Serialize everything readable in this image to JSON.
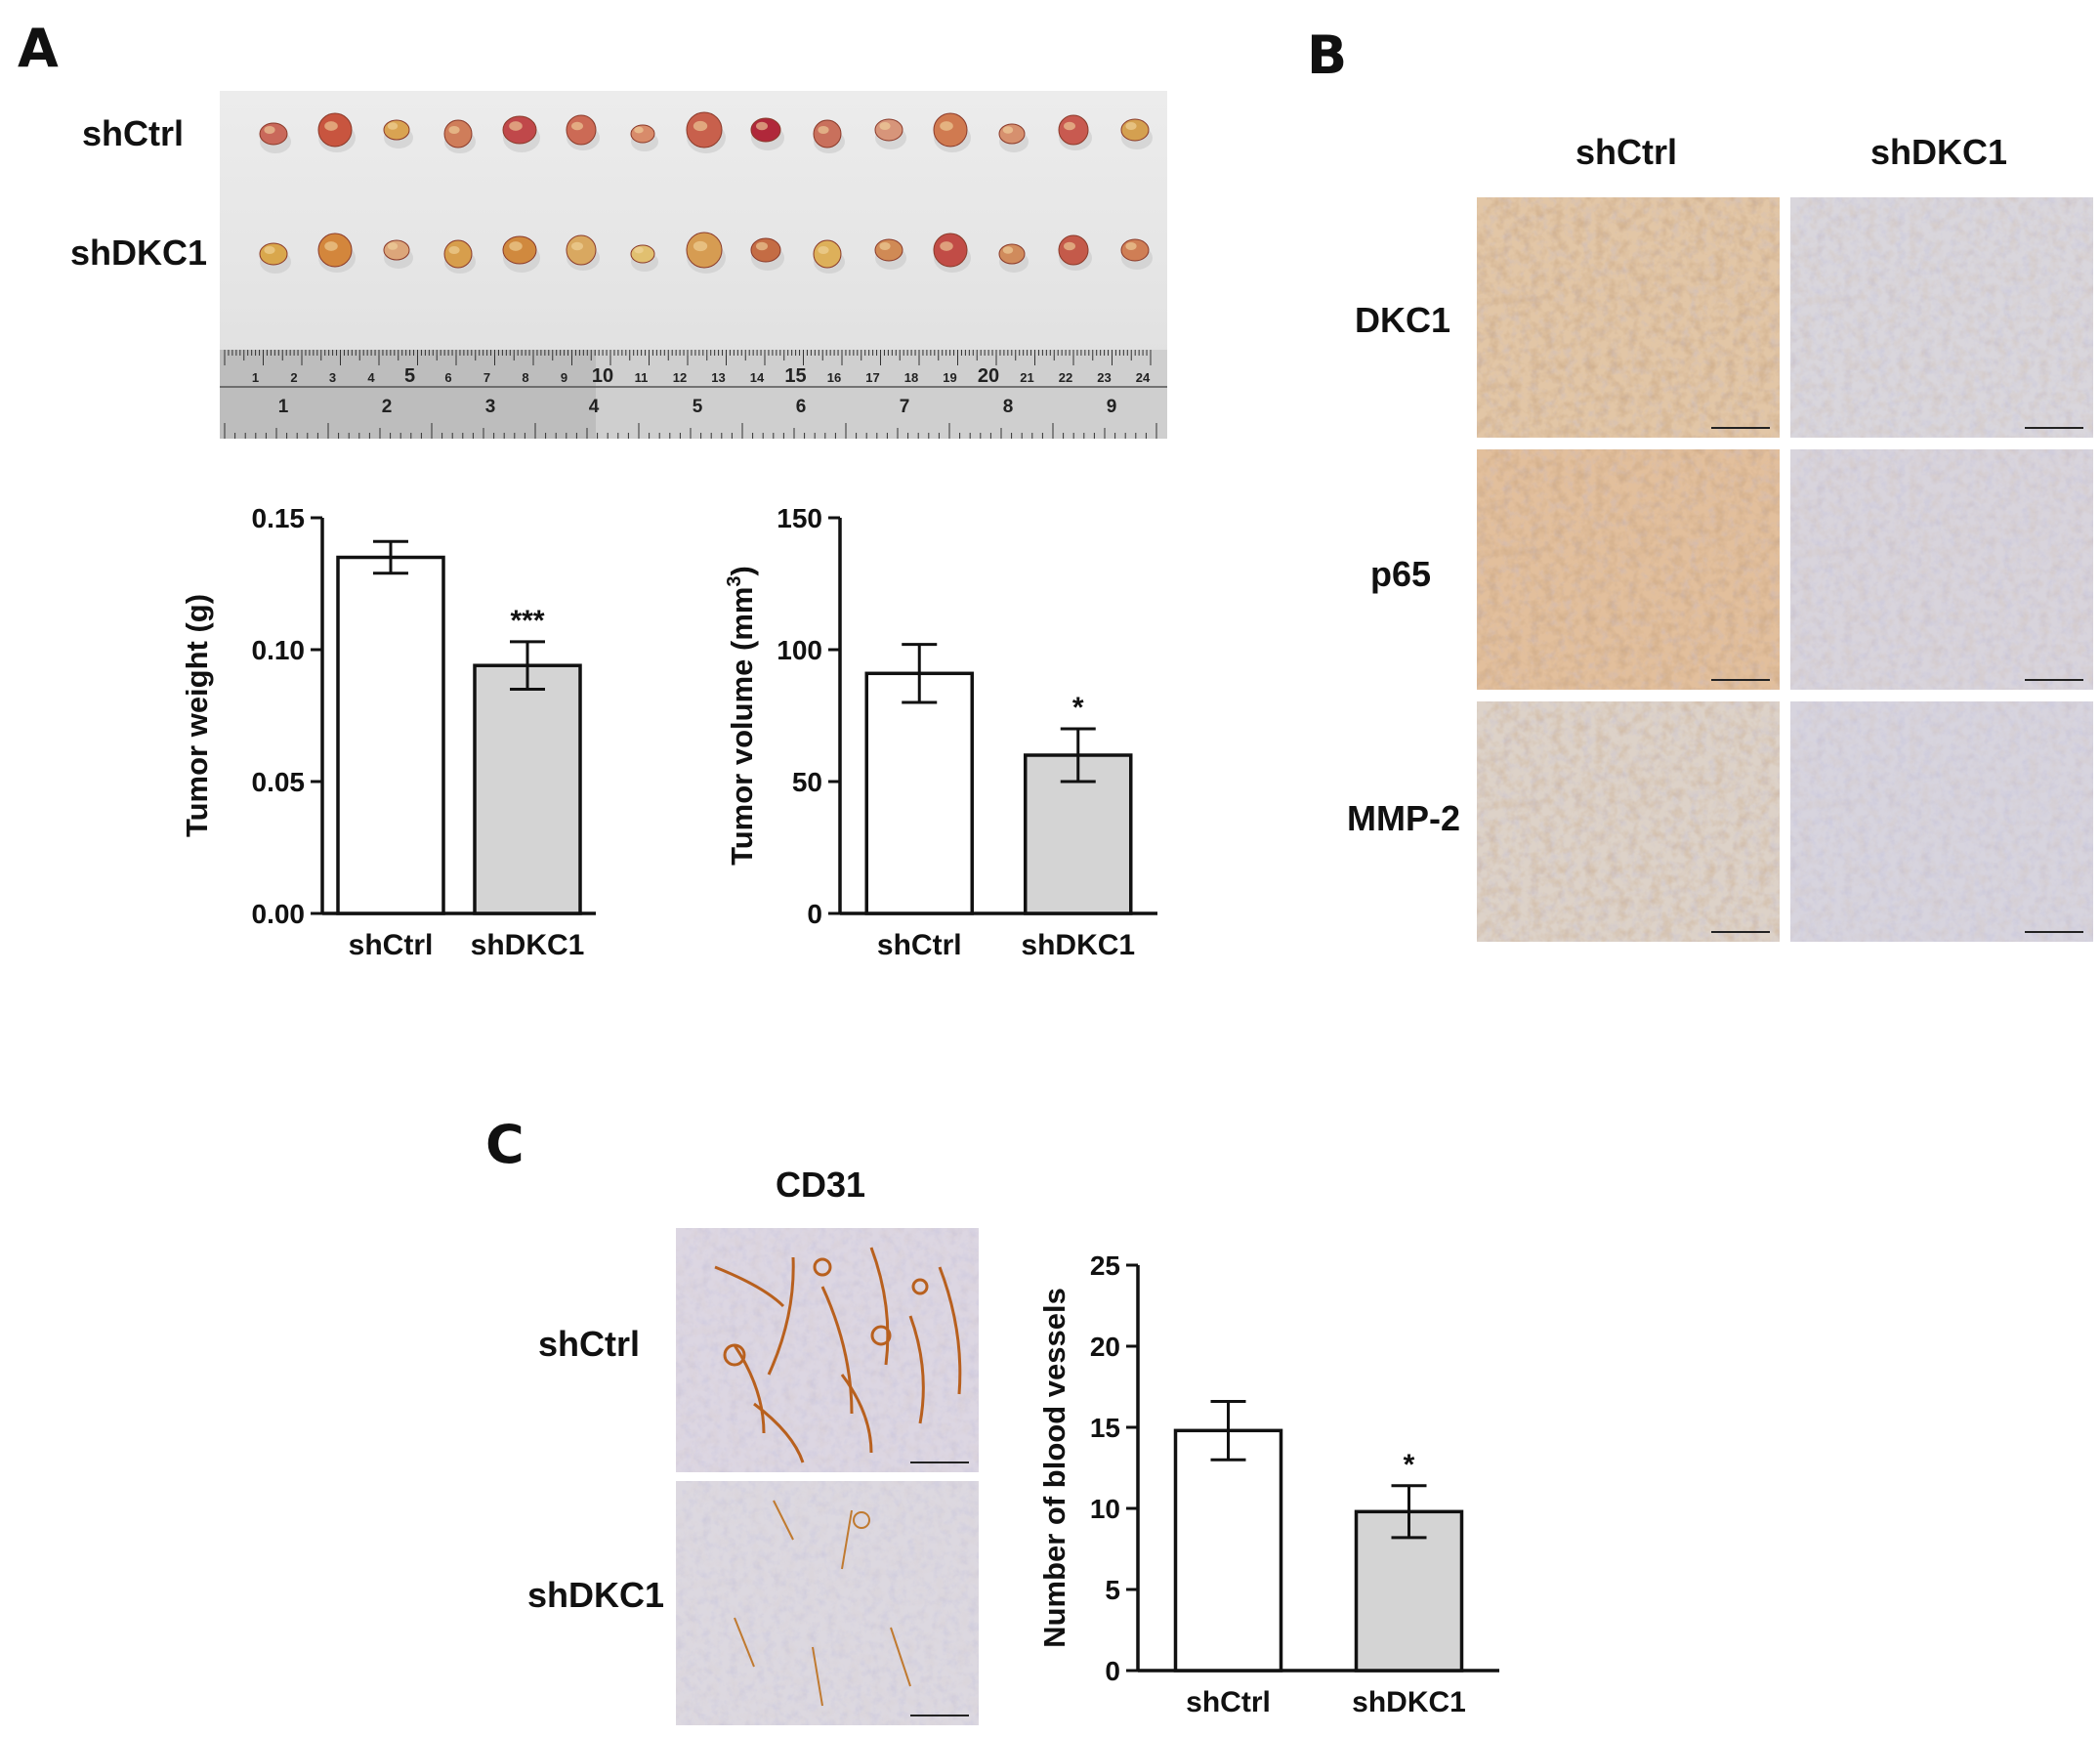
{
  "panel_a": {
    "letter": "A",
    "photo_row_labels": [
      "shCtrl",
      "shDKC1"
    ],
    "ruler_top_numbers": [
      "1",
      "2",
      "3",
      "4",
      "5",
      "6",
      "7",
      "8",
      "9",
      "10",
      "11",
      "12",
      "13",
      "14",
      "15",
      "16",
      "17",
      "18",
      "19",
      "20",
      "21",
      "22",
      "23",
      "24"
    ],
    "ruler_bottom_numbers": [
      "1",
      "2",
      "3",
      "4",
      "5",
      "6",
      "7",
      "8",
      "9"
    ]
  },
  "panel_b": {
    "letter": "B",
    "column_labels": [
      "shCtrl",
      "shDKC1"
    ],
    "row_labels": [
      "DKC1",
      "p65",
      "MMP-2"
    ]
  },
  "panel_c": {
    "letter": "C",
    "stain_title": "CD31",
    "row_labels": [
      "shCtrl",
      "shDKC1"
    ]
  },
  "chart_data": [
    {
      "type": "bar",
      "categories": [
        "shCtrl",
        "shDKC1"
      ],
      "values": [
        0.135,
        0.094
      ],
      "errors": [
        0.006,
        0.009
      ],
      "significance": [
        "",
        "***"
      ],
      "bar_colors": [
        "#ffffff",
        "#d4d4d4"
      ],
      "ylabel": "Tumor weight (g)",
      "xlabel": "",
      "ylim": [
        0,
        0.15
      ],
      "yticks": [
        "0.00",
        "0.05",
        "0.10",
        "0.15"
      ]
    },
    {
      "type": "bar",
      "categories": [
        "shCtrl",
        "shDKC1"
      ],
      "values": [
        91,
        60
      ],
      "errors": [
        11,
        10
      ],
      "significance": [
        "",
        "*"
      ],
      "bar_colors": [
        "#ffffff",
        "#d4d4d4"
      ],
      "ylabel": "Tumor volume (mm",
      "ylabel_superscript": "3",
      "ylabel_suffix": ")",
      "xlabel": "",
      "ylim": [
        0,
        150
      ],
      "yticks": [
        "0",
        "50",
        "100",
        "150"
      ]
    },
    {
      "type": "bar",
      "categories": [
        "shCtrl",
        "shDKC1"
      ],
      "values": [
        14.8,
        9.8
      ],
      "errors": [
        1.8,
        1.6
      ],
      "significance": [
        "",
        "*"
      ],
      "bar_colors": [
        "#ffffff",
        "#d4d4d4"
      ],
      "ylabel": "Number of blood vessels",
      "xlabel": "",
      "ylim": [
        0,
        25
      ],
      "yticks": [
        "0",
        "5",
        "10",
        "15",
        "20",
        "25"
      ]
    }
  ]
}
